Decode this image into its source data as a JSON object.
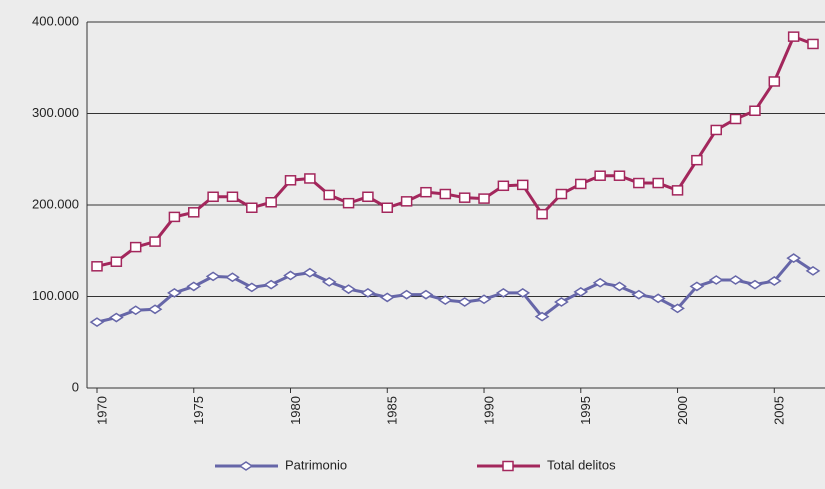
{
  "chart_data": {
    "type": "line",
    "categories": [
      "1970",
      null,
      null,
      null,
      null,
      "1975",
      null,
      null,
      null,
      null,
      "1980",
      null,
      null,
      null,
      null,
      "1985",
      null,
      null,
      null,
      null,
      "1990",
      null,
      null,
      null,
      null,
      "1995",
      null,
      null,
      null,
      null,
      "2000",
      null,
      null,
      null,
      null,
      "2005",
      null,
      null
    ],
    "series": [
      {
        "name": "Patrimonio",
        "color": "#6666a8",
        "marker": "diamond",
        "values": [
          72000,
          77000,
          85000,
          86000,
          104000,
          111000,
          122000,
          121000,
          110000,
          113000,
          123000,
          126000,
          116000,
          108000,
          104000,
          99000,
          102000,
          102000,
          96000,
          94000,
          97000,
          104000,
          104000,
          78000,
          94000,
          105000,
          115000,
          111000,
          102000,
          98000,
          87000,
          111000,
          118000,
          118000,
          113000,
          117000,
          142000,
          128000
        ]
      },
      {
        "name": "Total delitos",
        "color": "#a3275c",
        "marker": "square",
        "values": [
          133000,
          138000,
          154000,
          160000,
          187000,
          192000,
          209000,
          209000,
          197000,
          203000,
          227000,
          229000,
          211000,
          202000,
          209000,
          197000,
          204000,
          214000,
          212000,
          208000,
          207000,
          221000,
          222000,
          190000,
          212000,
          223000,
          232000,
          232000,
          224000,
          224000,
          216000,
          249000,
          282000,
          294000,
          303000,
          335000,
          384000,
          376000
        ]
      }
    ],
    "ylim": [
      0,
      400000
    ],
    "yticks": [
      0,
      {
        "value": 100000,
        "label": "100.000"
      },
      {
        "value": 200000,
        "label": "200.000"
      },
      {
        "value": 300000,
        "label": "300.000"
      },
      {
        "value": 400000,
        "label": "400.000"
      }
    ],
    "grid": true,
    "legend": "bottom"
  }
}
